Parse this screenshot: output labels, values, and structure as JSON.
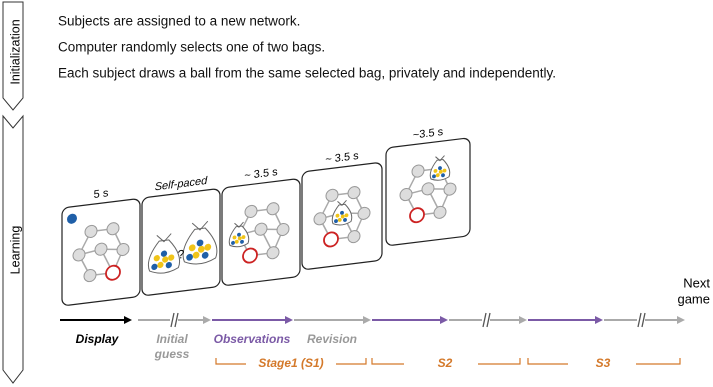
{
  "sidebar": {
    "initialization": "Initialization",
    "learning": "Learning"
  },
  "init_lines": [
    "Subjects are assigned to a new network.",
    "Computer randomly selects one of two bags.",
    "Each subject draws a ball from the same selected bag, privately and independently."
  ],
  "panels": [
    {
      "time": "5 s"
    },
    {
      "time": "Self-paced",
      "question": "?"
    },
    {
      "time": "~ 3.5 s"
    },
    {
      "time": "~ 3.5 s"
    },
    {
      "time": "~3.5 s"
    }
  ],
  "next_game": [
    "Next",
    "game"
  ],
  "timeline": {
    "display": "Display",
    "initial_guess": [
      "Initial",
      "guess"
    ],
    "observations": "Observations",
    "revision": "Revision"
  },
  "stages": [
    "Stage1 (S1)",
    "S2",
    "S3"
  ]
}
